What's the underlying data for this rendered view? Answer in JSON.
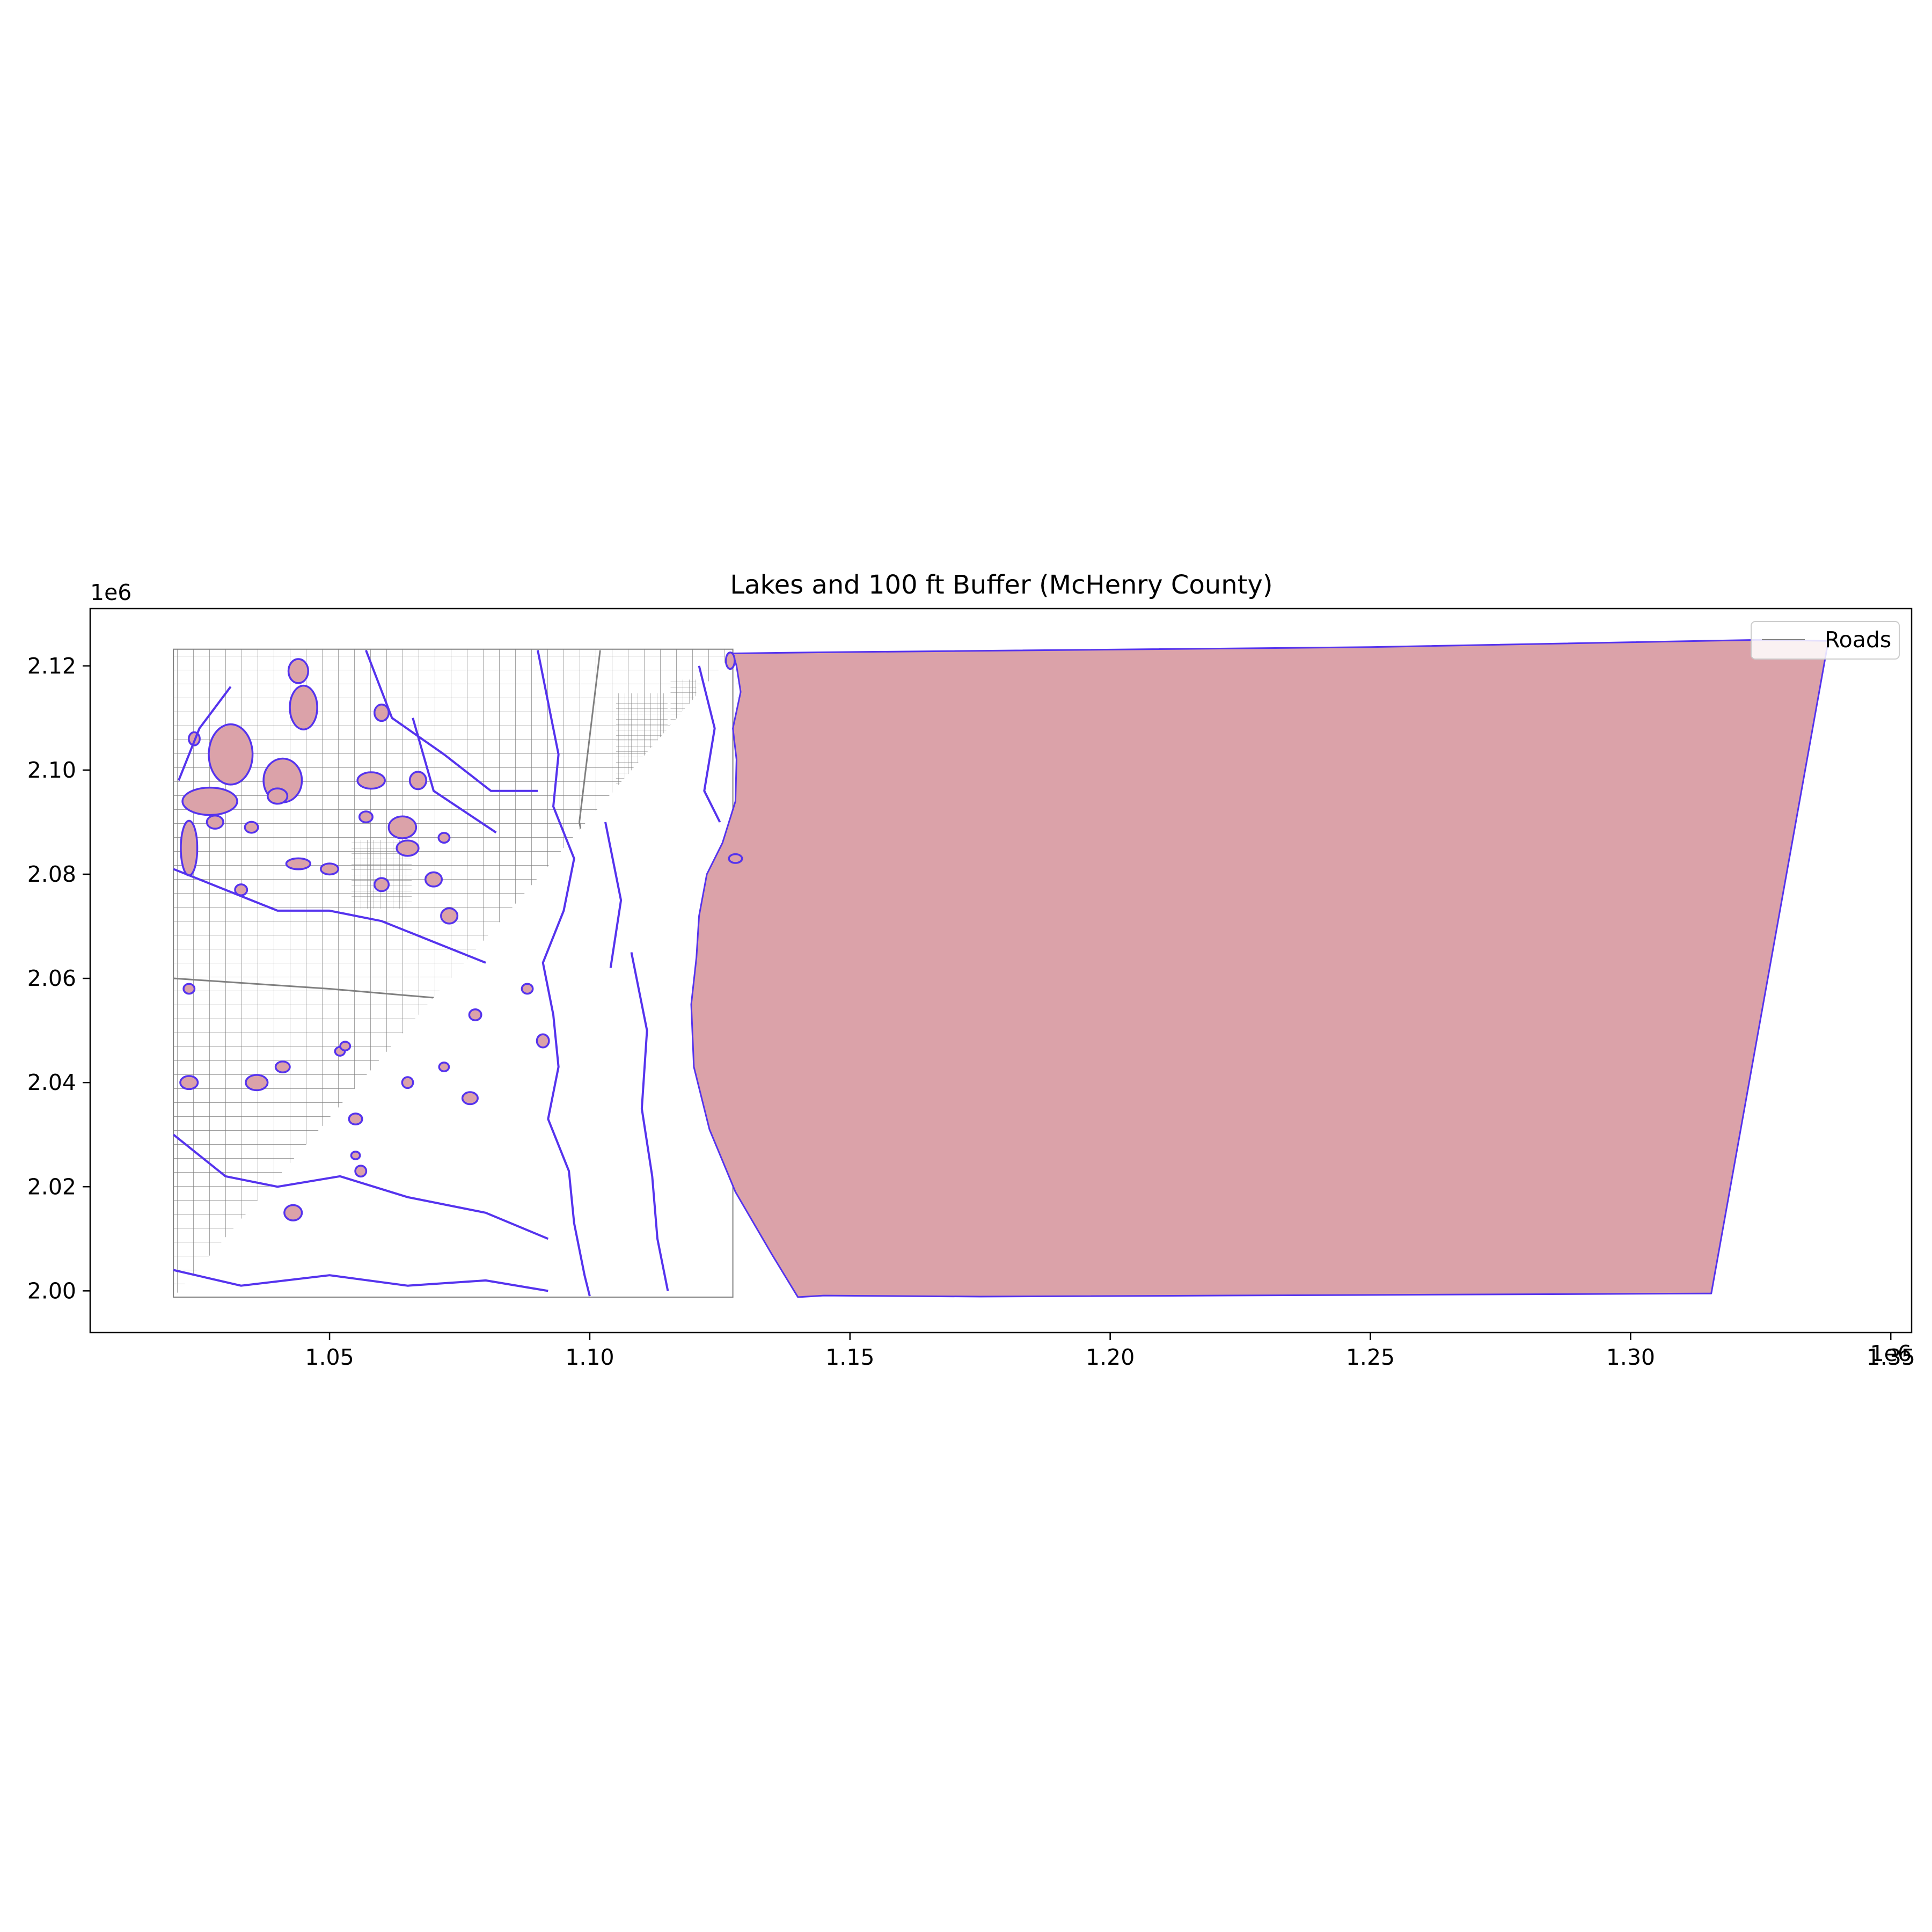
{
  "chart_data": {
    "type": "map",
    "title": "Lakes and 100 ft Buffer (McHenry County)",
    "x_ticks": [
      1.05,
      1.1,
      1.15,
      1.2,
      1.25,
      1.3,
      1.35
    ],
    "x_tick_labels": [
      "1.05",
      "1.10",
      "1.15",
      "1.20",
      "1.25",
      "1.30",
      "1.35"
    ],
    "x_offset_label": "1e6",
    "y_ticks": [
      2.0,
      2.02,
      2.04,
      2.06,
      2.08,
      2.1,
      2.12
    ],
    "y_tick_labels": [
      "2.00",
      "2.02",
      "2.04",
      "2.06",
      "2.08",
      "2.10",
      "2.12"
    ],
    "y_offset_label": "1e6",
    "xlim": [
      1.004,
      1.354
    ],
    "ylim": [
      1.992,
      2.131
    ],
    "legend": {
      "placement": "top-right",
      "entries": [
        {
          "label": "Roads",
          "color": "#808080"
        }
      ]
    },
    "colors": {
      "lake_fill": "#dba2a9",
      "buffer_outline": "#5533ee",
      "roads": "#808080"
    },
    "buffer_polygon": [
      [
        1.1275,
        2.1224
      ],
      [
        1.144,
        2.1226
      ],
      [
        1.25,
        2.1236
      ],
      [
        1.325,
        2.125
      ],
      [
        1.338,
        2.1248
      ],
      [
        1.3155,
        1.9995
      ],
      [
        1.175,
        1.9989
      ],
      [
        1.145,
        1.9991
      ],
      [
        1.14,
        1.9988
      ],
      [
        1.135,
        2.007
      ],
      [
        1.128,
        2.019
      ],
      [
        1.123,
        2.031
      ],
      [
        1.12,
        2.043
      ],
      [
        1.1195,
        2.055
      ],
      [
        1.1205,
        2.064
      ],
      [
        1.121,
        2.072
      ],
      [
        1.1225,
        2.08
      ],
      [
        1.1255,
        2.086
      ],
      [
        1.128,
        2.094
      ],
      [
        1.1282,
        2.102
      ],
      [
        1.1275,
        2.108
      ],
      [
        1.129,
        2.115
      ],
      [
        1.1282,
        2.12
      ]
    ],
    "lakes": [
      [
        1.031,
        2.103,
        4.0,
        5.5
      ],
      [
        1.041,
        2.098,
        3.5,
        4.0
      ],
      [
        1.027,
        2.094,
        5.0,
        2.5
      ],
      [
        1.023,
        2.085,
        1.5,
        5.0
      ],
      [
        1.045,
        2.112,
        2.5,
        4.0
      ],
      [
        1.044,
        2.119,
        1.8,
        2.2
      ],
      [
        1.06,
        2.111,
        1.3,
        1.5
      ],
      [
        1.058,
        2.098,
        2.5,
        1.5
      ],
      [
        1.067,
        2.098,
        1.5,
        1.6
      ],
      [
        1.064,
        2.089,
        2.5,
        2.0
      ],
      [
        1.065,
        2.085,
        2.0,
        1.4
      ],
      [
        1.07,
        2.079,
        1.5,
        1.3
      ],
      [
        1.073,
        2.072,
        1.5,
        1.4
      ],
      [
        1.06,
        2.078,
        1.3,
        1.2
      ],
      [
        1.05,
        2.081,
        1.6,
        1.0
      ],
      [
        1.044,
        2.082,
        2.2,
        1.0
      ],
      [
        1.035,
        2.089,
        1.2,
        1.0
      ],
      [
        1.033,
        2.077,
        1.1,
        1.0
      ],
      [
        1.023,
        2.04,
        1.6,
        1.2
      ],
      [
        1.036,
        2.04,
        2.0,
        1.4
      ],
      [
        1.041,
        2.043,
        1.3,
        1.0
      ],
      [
        1.065,
        2.04,
        1.0,
        1.0
      ],
      [
        1.055,
        2.033,
        1.2,
        1.0
      ],
      [
        1.056,
        2.023,
        1.0,
        1.0
      ],
      [
        1.052,
        2.046,
        0.9,
        0.8
      ],
      [
        1.053,
        2.047,
        0.9,
        0.8
      ],
      [
        1.055,
        2.026,
        0.8,
        0.7
      ],
      [
        1.043,
        2.015,
        1.6,
        1.4
      ],
      [
        1.077,
        2.037,
        1.4,
        1.1
      ],
      [
        1.072,
        2.043,
        0.9,
        0.8
      ],
      [
        1.078,
        2.053,
        1.1,
        1.0
      ],
      [
        1.088,
        2.058,
        1.0,
        0.9
      ],
      [
        1.091,
        2.048,
        1.1,
        1.2
      ],
      [
        1.023,
        2.058,
        1.0,
        0.9
      ],
      [
        1.072,
        2.087,
        1.0,
        0.9
      ],
      [
        1.057,
        2.091,
        1.2,
        1.0
      ],
      [
        1.04,
        2.095,
        1.8,
        1.4
      ],
      [
        1.024,
        2.106,
        1.0,
        1.2
      ],
      [
        1.028,
        2.09,
        1.5,
        1.2
      ],
      [
        1.128,
        2.083,
        1.2,
        0.8
      ],
      [
        1.127,
        2.121,
        0.8,
        1.5
      ]
    ],
    "rivers": [
      [
        [
          1.09,
          2.123
        ],
        [
          1.092,
          2.113
        ],
        [
          1.094,
          2.103
        ],
        [
          1.093,
          2.093
        ],
        [
          1.097,
          2.083
        ],
        [
          1.095,
          2.073
        ],
        [
          1.091,
          2.063
        ],
        [
          1.093,
          2.053
        ],
        [
          1.094,
          2.043
        ],
        [
          1.092,
          2.033
        ],
        [
          1.096,
          2.023
        ],
        [
          1.097,
          2.013
        ],
        [
          1.099,
          2.003
        ],
        [
          1.1,
          1.999
        ]
      ],
      [
        [
          1.057,
          2.123
        ],
        [
          1.062,
          2.11
        ],
        [
          1.072,
          2.103
        ],
        [
          1.081,
          2.096
        ],
        [
          1.09,
          2.096
        ]
      ],
      [
        [
          1.066,
          2.11
        ],
        [
          1.07,
          2.096
        ],
        [
          1.082,
          2.088
        ]
      ],
      [
        [
          1.02,
          2.081
        ],
        [
          1.03,
          2.077
        ],
        [
          1.04,
          2.073
        ],
        [
          1.05,
          2.073
        ],
        [
          1.06,
          2.071
        ],
        [
          1.07,
          2.067
        ],
        [
          1.08,
          2.063
        ]
      ],
      [
        [
          1.02,
          2.03
        ],
        [
          1.03,
          2.022
        ],
        [
          1.04,
          2.02
        ],
        [
          1.052,
          2.022
        ],
        [
          1.065,
          2.018
        ],
        [
          1.08,
          2.015
        ],
        [
          1.092,
          2.01
        ]
      ],
      [
        [
          1.02,
          2.004
        ],
        [
          1.033,
          2.001
        ],
        [
          1.05,
          2.003
        ],
        [
          1.065,
          2.001
        ],
        [
          1.08,
          2.002
        ],
        [
          1.092,
          2.0
        ]
      ],
      [
        [
          1.108,
          2.065
        ],
        [
          1.111,
          2.05
        ],
        [
          1.11,
          2.035
        ],
        [
          1.112,
          2.022
        ],
        [
          1.113,
          2.01
        ],
        [
          1.115,
          2.0
        ]
      ],
      [
        [
          1.121,
          2.12
        ],
        [
          1.124,
          2.108
        ],
        [
          1.122,
          2.096
        ],
        [
          1.125,
          2.09
        ]
      ],
      [
        [
          1.103,
          2.09
        ],
        [
          1.106,
          2.075
        ],
        [
          1.104,
          2.062
        ]
      ],
      [
        [
          1.031,
          2.116
        ],
        [
          1.025,
          2.108
        ],
        [
          1.021,
          2.098
        ]
      ]
    ]
  }
}
